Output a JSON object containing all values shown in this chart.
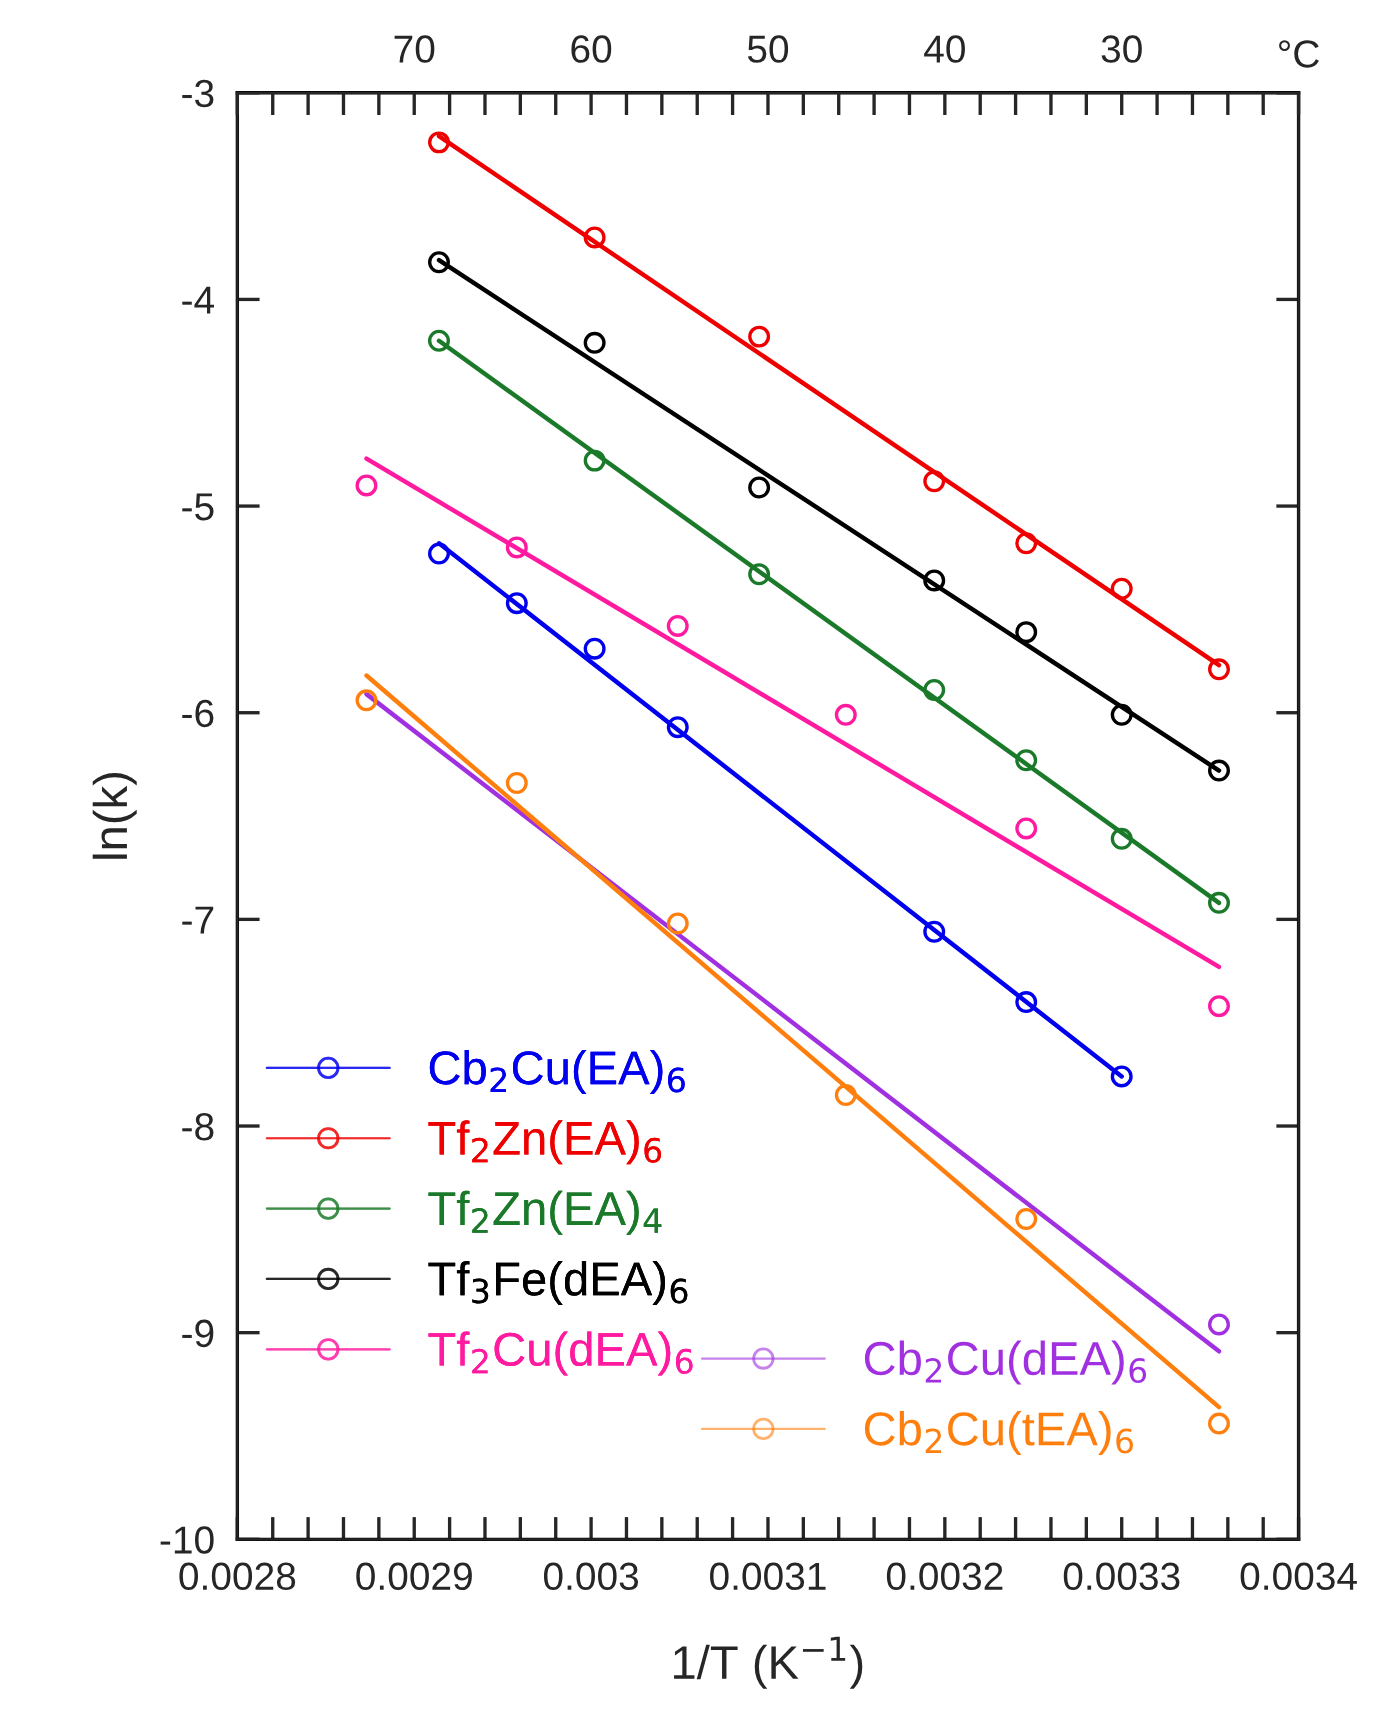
{
  "chart_data": {
    "type": "scatter",
    "xlabel": "1/T (K$^{−1}$)",
    "ylabel": "ln(k)",
    "x2label": "°C",
    "xlim": [
      0.0028,
      0.0034
    ],
    "ylim": [
      -10,
      -3
    ],
    "x2lim": [
      80,
      20
    ],
    "xticks": [
      0.0028,
      {
        "value": 0.00282,
        "label": null
      },
      {
        "value": 0.00284,
        "label": null
      },
      {
        "value": 0.00286,
        "label": null
      },
      {
        "value": 0.00288,
        "label": null
      },
      0.0029,
      {
        "value": 0.00292,
        "label": null
      },
      {
        "value": 0.00294,
        "label": null
      },
      {
        "value": 0.00296,
        "label": null
      },
      {
        "value": 0.00298,
        "label": null
      },
      0.003,
      {
        "value": 0.00302,
        "label": null
      },
      {
        "value": 0.00304,
        "label": null
      },
      {
        "value": 0.00306,
        "label": null
      },
      {
        "value": 0.00308,
        "label": null
      },
      0.0031,
      {
        "value": 0.00312,
        "label": null
      },
      {
        "value": 0.00314,
        "label": null
      },
      {
        "value": 0.00316,
        "label": null
      },
      {
        "value": 0.00318,
        "label": null
      },
      0.0032,
      {
        "value": 0.00322,
        "label": null
      },
      {
        "value": 0.00324,
        "label": null
      },
      {
        "value": 0.00326,
        "label": null
      },
      {
        "value": 0.00328,
        "label": null
      },
      0.0033,
      {
        "value": 0.00332,
        "label": null
      },
      {
        "value": 0.00334,
        "label": null
      },
      {
        "value": 0.00336,
        "label": null
      },
      {
        "value": 0.00338,
        "label": null
      },
      0.0034
    ],
    "x2ticks": [
      {
        "value": 80,
        "label": null
      },
      {
        "value": 78,
        "label": null
      },
      {
        "value": 76,
        "label": null
      },
      {
        "value": 74,
        "label": null
      },
      {
        "value": 72,
        "label": null
      },
      70,
      {
        "value": 68,
        "label": null
      },
      {
        "value": 66,
        "label": null
      },
      {
        "value": 64,
        "label": null
      },
      {
        "value": 62,
        "label": null
      },
      60,
      {
        "value": 58,
        "label": null
      },
      {
        "value": 56,
        "label": null
      },
      {
        "value": 54,
        "label": null
      },
      {
        "value": 52,
        "label": null
      },
      50,
      {
        "value": 48,
        "label": null
      },
      {
        "value": 46,
        "label": null
      },
      {
        "value": 44,
        "label": null
      },
      {
        "value": 42,
        "label": null
      },
      40,
      {
        "value": 38,
        "label": null
      },
      {
        "value": 36,
        "label": null
      },
      {
        "value": 34,
        "label": null
      },
      {
        "value": 32,
        "label": null
      },
      30,
      {
        "value": 28,
        "label": null
      },
      {
        "value": 26,
        "label": null
      },
      {
        "value": 24,
        "label": null
      },
      {
        "value": 22,
        "label": null
      },
      {
        "value": 20,
        "label": null
      }
    ],
    "yticks": [
      -10,
      -9,
      -8,
      -7,
      -6,
      -5,
      -4,
      -3
    ],
    "grid": false,
    "legend": "bottom left",
    "marker": "circle",
    "line_style": "solid",
    "series": [
      {
        "name": "Cb$_{2}$Cu(EA)$_{6}$",
        "color": "#0000ee",
        "x": [
          0.002914,
          0.002958,
          0.003002,
          0.003049,
          0.003194,
          0.003246,
          0.0033
        ],
        "values": [
          -5.23,
          -5.47,
          -5.69,
          -6.07,
          -7.06,
          -7.4,
          -7.76
        ]
      },
      {
        "name": "Tf$_{2}$Zn(EA)$_{6}$",
        "color": "#ee0000",
        "x": [
          0.002914,
          0.003002,
          0.003095,
          0.003194,
          0.003246,
          0.0033,
          0.003355
        ],
        "values": [
          -3.24,
          -3.7,
          -4.18,
          -4.88,
          -5.18,
          -5.4,
          -5.79
        ]
      },
      {
        "name": "Tf$_{2}$Zn(EA)$_{4}$",
        "color": "#1a7a2a",
        "x": [
          0.002914,
          0.003002,
          0.003095,
          0.003194,
          0.003246,
          0.0033,
          0.003355
        ],
        "values": [
          -4.2,
          -4.78,
          -5.33,
          -5.89,
          -6.23,
          -6.61,
          -6.92
        ]
      },
      {
        "name": "Tf$_{3}$Fe(dEA)$_{6}$",
        "color": "#000000",
        "x": [
          0.002914,
          0.003002,
          0.003095,
          0.003194,
          0.003246,
          0.0033,
          0.003355
        ],
        "values": [
          -3.82,
          -4.21,
          -4.91,
          -5.36,
          -5.61,
          -6.01,
          -6.28
        ]
      },
      {
        "name": "Tf$_{2}$Cu(dEA)$_{6}$",
        "color": "#ff1aa0",
        "x": [
          0.002873,
          0.002958,
          0.003049,
          0.003144,
          0.003246,
          0.003355
        ],
        "values": [
          -4.9,
          -5.2,
          -5.58,
          -6.01,
          -6.56,
          -7.42
        ]
      },
      {
        "name": "Cb$_{2}$Cu(dEA)$_{6}$",
        "color": "#a030e0",
        "x": [
          0.003355
        ],
        "values": [
          -8.96
        ]
      },
      {
        "name": "Cb$_{2}$Cu(tEA)$_{6}$",
        "color": "#ff7f0e",
        "x": [
          0.002873,
          0.002958,
          0.003049,
          0.003144,
          0.003246,
          0.003355
        ],
        "values": [
          -5.94,
          -6.34,
          -7.02,
          -7.85,
          -8.45,
          -9.44
        ]
      },
      {
        "type": "line",
        "marker": "none",
        "color": "#0000ee",
        "x": [
          0.002914,
          0.0033
        ],
        "values": [
          -5.18,
          -7.76
        ]
      },
      {
        "type": "line",
        "marker": "none",
        "color": "#ee0000",
        "x": [
          0.002914,
          0.003355
        ],
        "values": [
          -3.21,
          -5.77
        ]
      },
      {
        "type": "line",
        "marker": "none",
        "color": "#1a7a2a",
        "x": [
          0.002914,
          0.003355
        ],
        "values": [
          -4.2,
          -6.92
        ]
      },
      {
        "type": "line",
        "marker": "none",
        "color": "#000000",
        "x": [
          0.002914,
          0.003355
        ],
        "values": [
          -3.81,
          -6.28
        ]
      },
      {
        "type": "line",
        "marker": "none",
        "color": "#ff1aa0",
        "x": [
          0.002873,
          0.003355
        ],
        "values": [
          -4.77,
          -7.23
        ]
      },
      {
        "type": "line",
        "marker": "none",
        "color": "#a030e0",
        "x": [
          0.002873,
          0.003355
        ],
        "values": [
          -5.91,
          -9.09
        ]
      },
      {
        "type": "line",
        "marker": "none",
        "color": "#ff7f0e",
        "x": [
          0.002873,
          0.003355
        ],
        "values": [
          -5.82,
          -9.36
        ]
      }
    ]
  }
}
